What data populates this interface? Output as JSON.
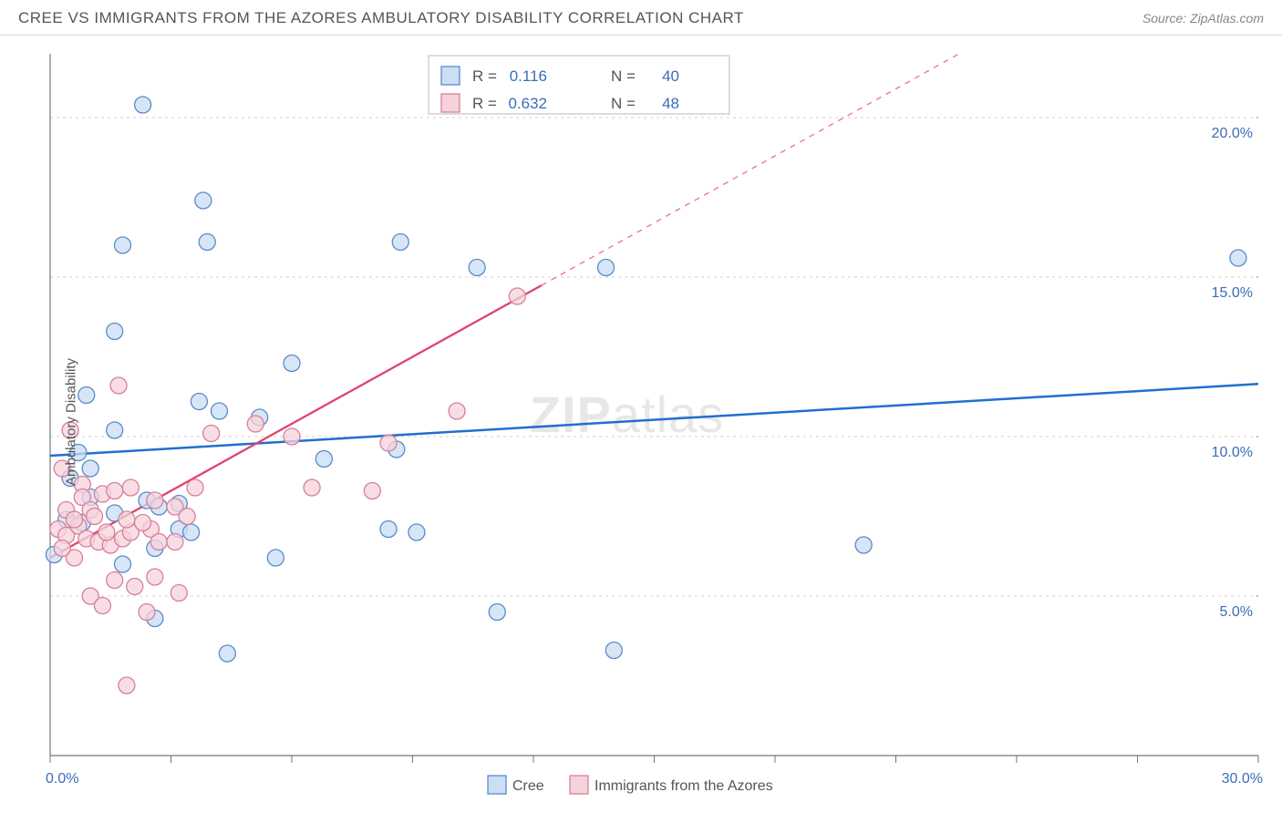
{
  "header": {
    "title": "CREE VS IMMIGRANTS FROM THE AZORES AMBULATORY DISABILITY CORRELATION CHART",
    "source": "Source: ZipAtlas.com"
  },
  "ylabel": "Ambulatory Disability",
  "watermark": {
    "a": "ZIP",
    "b": "atlas"
  },
  "chart": {
    "type": "scatter",
    "xlim": [
      0,
      30
    ],
    "ylim": [
      0,
      22
    ],
    "x_ticks": [
      0,
      3,
      6,
      9,
      12,
      15,
      18,
      21,
      24,
      27,
      30
    ],
    "x_tick_labels": {
      "0": "0.0%",
      "30": "30.0%"
    },
    "y_ticks": [
      5,
      10,
      15,
      20
    ],
    "y_tick_labels": {
      "5": "5.0%",
      "10": "10.0%",
      "15": "15.0%",
      "20": "20.0%"
    },
    "grid_ylines": [
      5,
      10,
      15,
      20
    ],
    "background_color": "#ffffff",
    "grid_color": "#d0d0d0",
    "axis_color": "#777777",
    "tick_label_color": "#3b6db5",
    "marker_radius": 9,
    "marker_stroke_width": 1.3,
    "series": [
      {
        "name": "Cree",
        "fill": "#cadef4",
        "stroke": "#5a8bc9",
        "R": "0.116",
        "N": "40",
        "trend": {
          "slope": 0.075,
          "intercept": 9.4,
          "color": "#1f6fd1",
          "width": 2.5,
          "dash_after_x": null
        },
        "points": [
          [
            2.3,
            20.4
          ],
          [
            3.8,
            17.4
          ],
          [
            1.8,
            16.0
          ],
          [
            3.9,
            16.1
          ],
          [
            8.7,
            16.1
          ],
          [
            10.6,
            15.3
          ],
          [
            13.8,
            15.3
          ],
          [
            29.5,
            15.6
          ],
          [
            1.6,
            13.3
          ],
          [
            0.9,
            11.3
          ],
          [
            3.7,
            11.1
          ],
          [
            1.6,
            10.2
          ],
          [
            6.0,
            12.3
          ],
          [
            5.2,
            10.6
          ],
          [
            1.0,
            9.0
          ],
          [
            0.5,
            8.7
          ],
          [
            1.0,
            8.1
          ],
          [
            2.4,
            8.0
          ],
          [
            3.2,
            7.9
          ],
          [
            0.4,
            7.4
          ],
          [
            0.8,
            7.3
          ],
          [
            1.6,
            7.6
          ],
          [
            2.7,
            7.8
          ],
          [
            3.2,
            7.1
          ],
          [
            2.6,
            6.5
          ],
          [
            3.5,
            7.0
          ],
          [
            8.6,
            9.6
          ],
          [
            6.8,
            9.3
          ],
          [
            4.2,
            10.8
          ],
          [
            8.4,
            7.1
          ],
          [
            0.1,
            6.3
          ],
          [
            5.6,
            6.2
          ],
          [
            2.6,
            4.3
          ],
          [
            4.4,
            3.2
          ],
          [
            11.1,
            4.5
          ],
          [
            14.0,
            3.3
          ],
          [
            20.2,
            6.6
          ],
          [
            9.1,
            7.0
          ],
          [
            1.8,
            6.0
          ],
          [
            0.7,
            9.5
          ]
        ]
      },
      {
        "name": "Immigrants from the Azores",
        "fill": "#f6d3db",
        "stroke": "#d97f9a",
        "R": "0.632",
        "N": "48",
        "trend": {
          "slope": 0.7,
          "intercept": 6.2,
          "color": "#e0436e",
          "width": 2.3,
          "dash_after_x": 12.2
        },
        "points": [
          [
            1.7,
            11.6
          ],
          [
            11.6,
            14.4
          ],
          [
            10.1,
            10.8
          ],
          [
            8.4,
            9.8
          ],
          [
            6.0,
            10.0
          ],
          [
            5.1,
            10.4
          ],
          [
            4.0,
            10.1
          ],
          [
            0.5,
            10.2
          ],
          [
            0.3,
            9.0
          ],
          [
            0.8,
            8.5
          ],
          [
            0.8,
            8.1
          ],
          [
            1.0,
            7.7
          ],
          [
            1.3,
            8.2
          ],
          [
            1.6,
            8.3
          ],
          [
            2.0,
            8.4
          ],
          [
            2.6,
            8.0
          ],
          [
            3.1,
            7.8
          ],
          [
            3.6,
            8.4
          ],
          [
            0.2,
            7.1
          ],
          [
            0.4,
            6.9
          ],
          [
            0.7,
            7.2
          ],
          [
            0.9,
            6.8
          ],
          [
            1.2,
            6.7
          ],
          [
            1.5,
            6.6
          ],
          [
            1.8,
            6.8
          ],
          [
            2.0,
            7.0
          ],
          [
            2.5,
            7.1
          ],
          [
            2.7,
            6.7
          ],
          [
            3.1,
            6.7
          ],
          [
            0.6,
            6.2
          ],
          [
            1.6,
            5.5
          ],
          [
            2.1,
            5.3
          ],
          [
            2.6,
            5.6
          ],
          [
            3.2,
            5.1
          ],
          [
            1.0,
            5.0
          ],
          [
            1.3,
            4.7
          ],
          [
            2.4,
            4.5
          ],
          [
            1.9,
            2.2
          ],
          [
            0.4,
            7.7
          ],
          [
            0.6,
            7.4
          ],
          [
            1.1,
            7.5
          ],
          [
            1.4,
            7.0
          ],
          [
            1.9,
            7.4
          ],
          [
            2.3,
            7.3
          ],
          [
            3.4,
            7.5
          ],
          [
            0.3,
            6.5
          ],
          [
            6.5,
            8.4
          ],
          [
            8.0,
            8.3
          ]
        ]
      }
    ]
  },
  "legend_top": {
    "R_label": "R  =",
    "N_label": "N  ="
  },
  "legend_bottom": {
    "a": "Cree",
    "b": "Immigrants from the Azores"
  }
}
